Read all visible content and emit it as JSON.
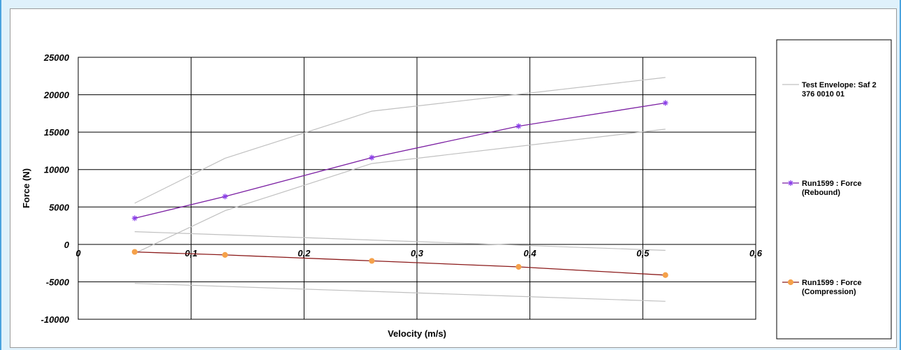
{
  "chart_data": {
    "type": "line",
    "title": "",
    "xlabel": "Velocity  (m/s)",
    "ylabel": "Force  (N)",
    "xlim": [
      0,
      0.6
    ],
    "ylim": [
      -10000,
      25000
    ],
    "x_ticks": [
      0,
      0.1,
      0.2,
      0.3,
      0.4,
      0.5,
      0.6
    ],
    "x_tick_labels": [
      "0",
      "0,1",
      "0,2",
      "0,3",
      "0,4",
      "0,5",
      "0,6"
    ],
    "y_ticks": [
      25000,
      20000,
      15000,
      10000,
      5000,
      0,
      -5000,
      -10000
    ],
    "y_tick_labels": [
      "25000",
      "20000",
      "15000",
      "10000",
      "5000",
      "0",
      "-5000",
      "-10000"
    ],
    "grid": true,
    "legend_position": "right",
    "envelope": {
      "name": "Test Envelope: Saf 2 376 0010 01",
      "name_lines": [
        "Test Envelope: Saf 2",
        "376 0010 01"
      ],
      "color": "#c0c0c0",
      "lines": [
        {
          "x": [
            0.05,
            0.13,
            0.26,
            0.52
          ],
          "y": [
            5500,
            11500,
            17800,
            22300
          ]
        },
        {
          "x": [
            0.05,
            0.13,
            0.26,
            0.52
          ],
          "y": [
            -1200,
            4500,
            10800,
            15400
          ]
        },
        {
          "x": [
            0.05,
            0.52
          ],
          "y": [
            1700,
            -800
          ]
        },
        {
          "x": [
            0.05,
            0.52
          ],
          "y": [
            -5200,
            -7600
          ]
        }
      ]
    },
    "series": [
      {
        "name": "Run1599 : Force (Rebound)",
        "name_lines": [
          "Run1599 : Force",
          "(Rebound)"
        ],
        "color": "#7b1fa2",
        "marker_color": "#8a3ee8",
        "marker": "asterisk",
        "x": [
          0.05,
          0.13,
          0.26,
          0.39,
          0.52
        ],
        "y": [
          3500,
          6400,
          11600,
          15800,
          18900
        ]
      },
      {
        "name": "Run1599 : Force (Compression)",
        "name_lines": [
          "Run1599 : Force",
          "(Compression)"
        ],
        "color": "#8b1a1a",
        "marker_color": "#f5a14a",
        "marker": "circle",
        "x": [
          0.05,
          0.13,
          0.26,
          0.39,
          0.52
        ],
        "y": [
          -1000,
          -1400,
          -2200,
          -3000,
          -4100
        ]
      }
    ]
  }
}
